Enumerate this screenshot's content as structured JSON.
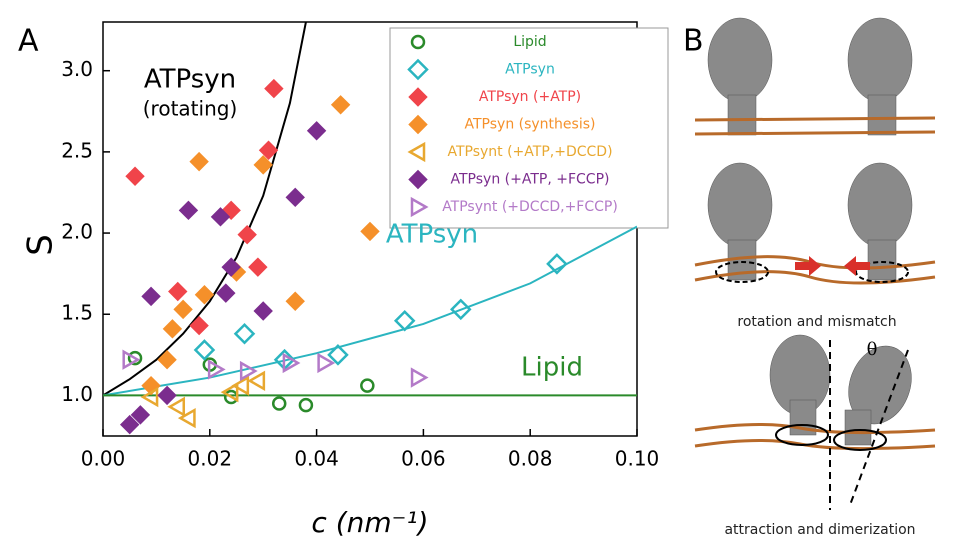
{
  "chart_data": {
    "type": "scatter",
    "panel_labels": [
      "A",
      "B"
    ],
    "xlabel": "c (nm⁻¹)",
    "ylabel": "S",
    "xlim": [
      0,
      0.1
    ],
    "ylim": [
      0.75,
      3.3
    ],
    "xticks": [
      {
        "value": 0,
        "label": "0.00"
      },
      {
        "value": 0.02,
        "label": "0.02"
      },
      {
        "value": 0.04,
        "label": "0.04"
      },
      {
        "value": 0.06,
        "label": "0.06"
      },
      {
        "value": 0.08,
        "label": "0.08"
      },
      {
        "value": 0.1,
        "label": "0.10"
      }
    ],
    "yticks": [
      {
        "value": 1,
        "label": "1.0"
      },
      {
        "value": 1.5,
        "label": "1.5"
      },
      {
        "value": 2,
        "label": "2.0"
      },
      {
        "value": 2.5,
        "label": "2.5"
      },
      {
        "value": 3,
        "label": "3.0"
      }
    ],
    "legend": "top-right",
    "series": [
      {
        "name": "Lipid",
        "color": "#2a8a2a",
        "marker": "circle",
        "filled": false,
        "x": [
          0.006,
          0.02,
          0.024,
          0.033,
          0.038,
          0.0495
        ],
        "values": [
          1.23,
          1.19,
          0.99,
          0.95,
          0.94,
          1.06
        ]
      },
      {
        "name": "ATPsyn",
        "color": "#2bb5c0",
        "marker": "diamond",
        "filled": false,
        "x": [
          0.019,
          0.0265,
          0.034,
          0.044,
          0.0565,
          0.067,
          0.085
        ],
        "values": [
          1.28,
          1.38,
          1.22,
          1.25,
          1.46,
          1.53,
          1.81
        ]
      },
      {
        "name": "ATPsyn (+ATP)",
        "color": "#f0444a",
        "marker": "diamond",
        "filled": true,
        "x": [
          0.006,
          0.014,
          0.018,
          0.024,
          0.027,
          0.029,
          0.031,
          0.032
        ],
        "values": [
          2.35,
          1.64,
          1.43,
          2.14,
          1.99,
          1.79,
          2.51,
          2.89
        ]
      },
      {
        "name": "ATPsyn (synthesis)",
        "color": "#f5902a",
        "marker": "diamond",
        "filled": true,
        "x": [
          0.009,
          0.012,
          0.013,
          0.015,
          0.018,
          0.019,
          0.025,
          0.03,
          0.036,
          0.0445,
          0.05
        ],
        "values": [
          1.06,
          1.22,
          1.41,
          1.53,
          2.44,
          1.62,
          1.76,
          2.42,
          1.58,
          2.79,
          2.01
        ]
      },
      {
        "name": "ATPsynt (+ATP,+DCCD)",
        "color": "#e8a830",
        "marker": "tri-left",
        "filled": false,
        "x": [
          0.009,
          0.014,
          0.016,
          0.024,
          0.026,
          0.029
        ],
        "values": [
          0.99,
          0.93,
          0.86,
          1.02,
          1.06,
          1.09
        ]
      },
      {
        "name": "ATPsyn (+ATP, +FCCP)",
        "color": "#7b2d8e",
        "marker": "diamond",
        "filled": true,
        "x": [
          0.005,
          0.007,
          0.009,
          0.012,
          0.016,
          0.022,
          0.023,
          0.024,
          0.03,
          0.036,
          0.04
        ],
        "values": [
          0.82,
          0.88,
          1.61,
          1.0,
          2.14,
          2.1,
          1.63,
          1.79,
          1.52,
          2.22,
          2.63
        ]
      },
      {
        "name": "ATPsynt (+DCCD,+FCCP)",
        "color": "#b37ac8",
        "marker": "tri-right",
        "filled": false,
        "x": [
          0.005,
          0.021,
          0.027,
          0.035,
          0.0415,
          0.059
        ],
        "values": [
          1.22,
          1.16,
          1.15,
          1.2,
          1.2,
          1.11
        ]
      }
    ],
    "curves": [
      {
        "color": "#000000",
        "x": [
          0,
          0.005,
          0.01,
          0.015,
          0.02,
          0.025,
          0.03,
          0.035,
          0.038
        ],
        "values": [
          1,
          1.1,
          1.22,
          1.38,
          1.58,
          1.85,
          2.23,
          2.8,
          3.3
        ]
      },
      {
        "color": "#2bb5c0",
        "x": [
          0,
          0.02,
          0.04,
          0.06,
          0.08,
          0.1
        ],
        "values": [
          1,
          1.11,
          1.26,
          1.44,
          1.69,
          2.04
        ]
      },
      {
        "color": "#2a8a2a",
        "x": [
          0,
          0.1
        ],
        "values": [
          1,
          1
        ]
      }
    ],
    "annotations": [
      "ATPsyn",
      "(rotating)",
      "ATPsyn",
      "Lipid"
    ],
    "captions": [
      "rotation and mismatch",
      "attraction and dimerization",
      "θ"
    ]
  }
}
